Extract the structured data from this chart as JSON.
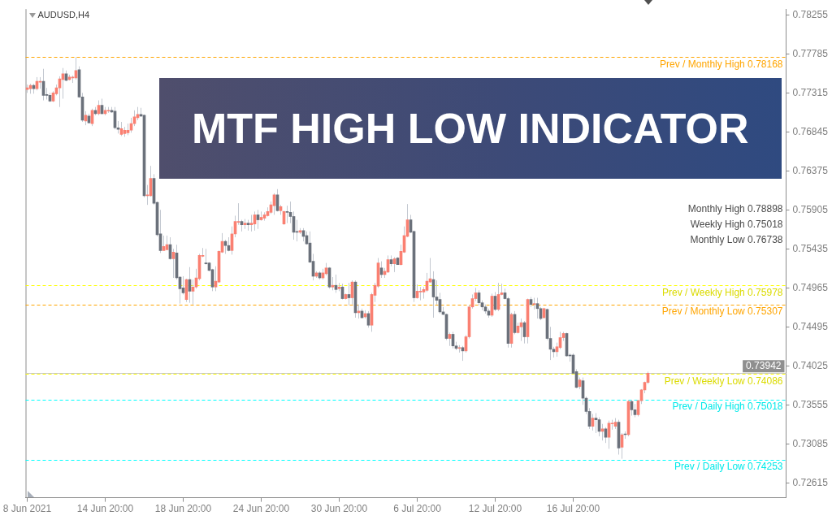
{
  "chart_data": {
    "type": "candlestick",
    "title": "MTF HIGH LOW INDICATOR",
    "subtitle": "AUDUSD,H4",
    "categories": [
      "8 Jun 2021",
      null,
      null,
      null,
      null,
      null,
      null,
      null,
      null,
      null,
      null,
      null,
      null,
      null,
      null,
      null,
      null,
      null,
      null,
      null,
      null,
      null,
      null,
      null,
      "14 Jun 20:00",
      null,
      null,
      null,
      null,
      null,
      null,
      null,
      null,
      null,
      null,
      null,
      null,
      null,
      null,
      null,
      null,
      null,
      null,
      null,
      null,
      null,
      null,
      null,
      "18 Jun 20:00",
      null,
      null,
      null,
      null,
      null,
      null,
      null,
      null,
      null,
      null,
      null,
      null,
      null,
      null,
      null,
      null,
      null,
      null,
      null,
      null,
      null,
      null,
      null,
      "24 Jun 20:00",
      null,
      null,
      null,
      null,
      null,
      null,
      null,
      null,
      null,
      null,
      null,
      null,
      null,
      null,
      null,
      null,
      null,
      null,
      null,
      null,
      null,
      null,
      null,
      "30 Jun 20:00",
      null,
      null,
      null,
      null,
      null,
      null,
      null,
      null,
      null,
      null,
      null,
      null,
      null,
      null,
      null,
      null,
      null,
      null,
      null,
      null,
      null,
      null,
      null,
      "6 Jul 20:00",
      null,
      null,
      null,
      null,
      null,
      null,
      null,
      null,
      null,
      null,
      null,
      null,
      null,
      null,
      null,
      null,
      null,
      null,
      null,
      null,
      null,
      null,
      null,
      "12 Jul 20:00",
      null,
      null,
      null,
      null,
      null,
      null,
      null,
      null,
      null,
      null,
      null,
      null,
      null,
      null,
      null,
      null,
      null,
      null,
      null,
      null,
      null,
      null,
      null,
      "16 Jul 20:00",
      null,
      null,
      null,
      null,
      null,
      null,
      null,
      null,
      null,
      null,
      null,
      null,
      null,
      null,
      null,
      null,
      null,
      null,
      null,
      null,
      null,
      null,
      null,
      null,
      null,
      null,
      null,
      null,
      null,
      null,
      null,
      null,
      null,
      null,
      null,
      null,
      null,
      null,
      null,
      null,
      null,
      null,
      null,
      null,
      null,
      null,
      null,
      null,
      null,
      null,
      null,
      null,
      null,
      null,
      null,
      null,
      null,
      null,
      null,
      null,
      null,
      null,
      null,
      null,
      null
    ],
    "ohlc": [
      [
        0.7736,
        0.7742,
        0.7732,
        0.7738
      ],
      [
        0.7737,
        0.7743,
        0.7731,
        0.7741
      ],
      [
        0.7741,
        0.7743,
        0.7731,
        0.7737
      ],
      [
        0.7737,
        0.7751,
        0.7735,
        0.7746
      ],
      [
        0.7745,
        0.7751,
        0.7737,
        0.7746
      ],
      [
        0.7746,
        0.7761,
        0.7723,
        0.7729
      ],
      [
        0.773,
        0.7738,
        0.7724,
        0.7729
      ],
      [
        0.7729,
        0.7732,
        0.7721,
        0.7722
      ],
      [
        0.7722,
        0.7734,
        0.7721,
        0.7732
      ],
      [
        0.7731,
        0.7742,
        0.7729,
        0.7738
      ],
      [
        0.7738,
        0.7752,
        0.7715,
        0.7749
      ],
      [
        0.7748,
        0.7762,
        0.7725,
        0.7755
      ],
      [
        0.7755,
        0.7759,
        0.7746,
        0.7747
      ],
      [
        0.7748,
        0.7754,
        0.7747,
        0.7751
      ],
      [
        0.775,
        0.7753,
        0.7744,
        0.7751
      ],
      [
        0.775,
        0.7775,
        0.7748,
        0.7759
      ],
      [
        0.776,
        0.7764,
        0.7726,
        0.7727
      ],
      [
        0.7727,
        0.7732,
        0.7697,
        0.7699
      ],
      [
        0.7698,
        0.771,
        0.7693,
        0.7705
      ],
      [
        0.7704,
        0.7707,
        0.7695,
        0.7696
      ],
      [
        0.7695,
        0.7713,
        0.7692,
        0.7711
      ],
      [
        0.7711,
        0.7715,
        0.7705,
        0.7707
      ],
      [
        0.7707,
        0.7723,
        0.7705,
        0.7717
      ],
      [
        0.7717,
        0.7725,
        0.7706,
        0.7707
      ],
      [
        0.7707,
        0.7715,
        0.7705,
        0.7711
      ],
      [
        0.771,
        0.7715,
        0.7708,
        0.7711
      ],
      [
        0.7711,
        0.7715,
        0.7708,
        0.7709
      ],
      [
        0.771,
        0.7715,
        0.7688,
        0.769
      ],
      [
        0.769,
        0.7698,
        0.7683,
        0.7688
      ],
      [
        0.7682,
        0.7697,
        0.768,
        0.7689
      ],
      [
        0.7683,
        0.7691,
        0.7679,
        0.7687
      ],
      [
        0.7684,
        0.7695,
        0.7681,
        0.7687
      ],
      [
        0.7687,
        0.7702,
        0.7684,
        0.7695
      ],
      [
        0.7695,
        0.7711,
        0.7692,
        0.7703
      ],
      [
        0.7702,
        0.7715,
        0.7699,
        0.7706
      ],
      [
        0.7706,
        0.7714,
        0.7703,
        0.7704
      ],
      [
        0.7705,
        0.7706,
        0.7606,
        0.7608
      ],
      [
        0.7608,
        0.7621,
        0.7597,
        0.7609
      ],
      [
        0.7608,
        0.7644,
        0.7607,
        0.7629
      ],
      [
        0.7629,
        0.7634,
        0.7597,
        0.7599
      ],
      [
        0.76,
        0.7601,
        0.7559,
        0.7561
      ],
      [
        0.7562,
        0.7591,
        0.7539,
        0.7542
      ],
      [
        0.7542,
        0.756,
        0.7542,
        0.7547
      ],
      [
        0.7543,
        0.756,
        0.7543,
        0.7549
      ],
      [
        0.7549,
        0.7558,
        0.7531,
        0.7532
      ],
      [
        0.7532,
        0.7544,
        0.7509,
        0.754
      ],
      [
        0.7539,
        0.7549,
        0.7507,
        0.7509
      ],
      [
        0.751,
        0.7511,
        0.7478,
        0.7496
      ],
      [
        0.7497,
        0.7511,
        0.7489,
        0.7491
      ],
      [
        0.7483,
        0.7508,
        0.748,
        0.7507
      ],
      [
        0.7507,
        0.7522,
        0.7479,
        0.7493
      ],
      [
        0.7493,
        0.7507,
        0.7477,
        0.7498
      ],
      [
        0.7498,
        0.752,
        0.7496,
        0.7509
      ],
      [
        0.7508,
        0.7538,
        0.7506,
        0.7536
      ],
      [
        0.7535,
        0.7545,
        0.7534,
        0.7536
      ],
      [
        0.7527,
        0.7544,
        0.7525,
        0.7526
      ],
      [
        0.7527,
        0.7528,
        0.7517,
        0.7518
      ],
      [
        0.7519,
        0.752,
        0.7493,
        0.7498
      ],
      [
        0.7498,
        0.7523,
        0.7493,
        0.7505
      ],
      [
        0.7504,
        0.7542,
        0.7503,
        0.7541
      ],
      [
        0.754,
        0.7563,
        0.7539,
        0.7553
      ],
      [
        0.7553,
        0.7555,
        0.7538,
        0.7548
      ],
      [
        0.7548,
        0.7558,
        0.7541,
        0.7542
      ],
      [
        0.7542,
        0.7571,
        0.7537,
        0.7562
      ],
      [
        0.7562,
        0.7584,
        0.7558,
        0.7577
      ],
      [
        0.7576,
        0.7599,
        0.7573,
        0.7577
      ],
      [
        0.7577,
        0.7579,
        0.7565,
        0.7573
      ],
      [
        0.7573,
        0.758,
        0.7568,
        0.7575
      ],
      [
        0.7575,
        0.7579,
        0.7566,
        0.7573
      ],
      [
        0.7573,
        0.7585,
        0.7565,
        0.7575
      ],
      [
        0.7574,
        0.7589,
        0.7566,
        0.7585
      ],
      [
        0.7585,
        0.7591,
        0.7568,
        0.7579
      ],
      [
        0.7579,
        0.7589,
        0.7578,
        0.7582
      ],
      [
        0.7581,
        0.7588,
        0.7578,
        0.7585
      ],
      [
        0.7584,
        0.7594,
        0.7583,
        0.7589
      ],
      [
        0.7588,
        0.7601,
        0.7586,
        0.7597
      ],
      [
        0.7596,
        0.7611,
        0.7585,
        0.7609
      ],
      [
        0.7609,
        0.7616,
        0.7589,
        0.759
      ],
      [
        0.759,
        0.7597,
        0.7585,
        0.7595
      ],
      [
        0.7574,
        0.759,
        0.7573,
        0.7589
      ],
      [
        0.7589,
        0.7596,
        0.7575,
        0.7588
      ],
      [
        0.7588,
        0.7601,
        0.7575,
        0.7583
      ],
      [
        0.7583,
        0.7589,
        0.7555,
        0.7564
      ],
      [
        0.7564,
        0.7579,
        0.7553,
        0.7564
      ],
      [
        0.7564,
        0.7569,
        0.7562,
        0.7566
      ],
      [
        0.7566,
        0.7569,
        0.7553,
        0.7559
      ],
      [
        0.756,
        0.7565,
        0.7549,
        0.755
      ],
      [
        0.7551,
        0.7565,
        0.7527,
        0.7528
      ],
      [
        0.7529,
        0.7538,
        0.7506,
        0.7511
      ],
      [
        0.7511,
        0.7517,
        0.7509,
        0.7515
      ],
      [
        0.7515,
        0.7517,
        0.7507,
        0.7509
      ],
      [
        0.7509,
        0.752,
        0.7507,
        0.7515
      ],
      [
        0.7514,
        0.7527,
        0.7512,
        0.7521
      ],
      [
        0.7521,
        0.7522,
        0.7496,
        0.7498
      ],
      [
        0.7498,
        0.751,
        0.7494,
        0.75
      ],
      [
        0.75,
        0.7513,
        0.7491,
        0.7495
      ],
      [
        0.7496,
        0.7503,
        0.7493,
        0.7498
      ],
      [
        0.7498,
        0.7502,
        0.7483,
        0.7484
      ],
      [
        0.7484,
        0.749,
        0.7483,
        0.7489
      ],
      [
        0.7489,
        0.7503,
        0.7476,
        0.7485
      ],
      [
        0.7485,
        0.7506,
        0.7477,
        0.7504
      ],
      [
        0.7504,
        0.7506,
        0.7461,
        0.7467
      ],
      [
        0.7467,
        0.7477,
        0.746,
        0.7469
      ],
      [
        0.7469,
        0.7472,
        0.746,
        0.7461
      ],
      [
        0.7462,
        0.747,
        0.746,
        0.7466
      ],
      [
        0.7466,
        0.7469,
        0.7449,
        0.7452
      ],
      [
        0.7452,
        0.7491,
        0.7444,
        0.7489
      ],
      [
        0.7488,
        0.7503,
        0.748,
        0.75
      ],
      [
        0.7499,
        0.7533,
        0.7497,
        0.7527
      ],
      [
        0.7521,
        0.7529,
        0.7509,
        0.7513
      ],
      [
        0.7513,
        0.7521,
        0.7509,
        0.7517
      ],
      [
        0.7516,
        0.7536,
        0.7515,
        0.7531
      ],
      [
        0.7531,
        0.7536,
        0.7523,
        0.7526
      ],
      [
        0.7526,
        0.7534,
        0.7516,
        0.7532
      ],
      [
        0.7533,
        0.7534,
        0.7525,
        0.7525
      ],
      [
        0.7525,
        0.7549,
        0.7524,
        0.7541
      ],
      [
        0.754,
        0.7571,
        0.7539,
        0.756
      ],
      [
        0.7559,
        0.7598,
        0.7558,
        0.7579
      ],
      [
        0.7579,
        0.7585,
        0.7563,
        0.7564
      ],
      [
        0.7565,
        0.7566,
        0.748,
        0.7485
      ],
      [
        0.7485,
        0.7501,
        0.7484,
        0.7493
      ],
      [
        0.7492,
        0.7498,
        0.7482,
        0.7493
      ],
      [
        0.7492,
        0.7498,
        0.7484,
        0.7495
      ],
      [
        0.7494,
        0.7515,
        0.7492,
        0.7505
      ],
      [
        0.7504,
        0.7533,
        0.7503,
        0.7508
      ],
      [
        0.7507,
        0.7517,
        0.7461,
        0.7486
      ],
      [
        0.7486,
        0.7506,
        0.7477,
        0.7482
      ],
      [
        0.7483,
        0.7491,
        0.7466,
        0.7468
      ],
      [
        0.7468,
        0.7474,
        0.7464,
        0.7465
      ],
      [
        0.7465,
        0.7466,
        0.7434,
        0.7436
      ],
      [
        0.7436,
        0.7443,
        0.7427,
        0.7441
      ],
      [
        0.7441,
        0.7444,
        0.7424,
        0.7427
      ],
      [
        0.7427,
        0.7432,
        0.7422,
        0.7424
      ],
      [
        0.7424,
        0.7428,
        0.7419,
        0.7425
      ],
      [
        0.7425,
        0.7427,
        0.7409,
        0.7421
      ],
      [
        0.7421,
        0.744,
        0.7419,
        0.7438
      ],
      [
        0.7438,
        0.7476,
        0.7436,
        0.7474
      ],
      [
        0.7474,
        0.7489,
        0.7472,
        0.7484
      ],
      [
        0.7484,
        0.7497,
        0.7481,
        0.7491
      ],
      [
        0.7491,
        0.7494,
        0.7476,
        0.7479
      ],
      [
        0.7479,
        0.7482,
        0.747,
        0.7474
      ],
      [
        0.7474,
        0.7477,
        0.7466,
        0.7469
      ],
      [
        0.7469,
        0.7472,
        0.7461,
        0.7464
      ],
      [
        0.7464,
        0.749,
        0.7462,
        0.7487
      ],
      [
        0.7487,
        0.7492,
        0.7469,
        0.7471
      ],
      [
        0.7471,
        0.7503,
        0.7469,
        0.7489
      ],
      [
        0.7489,
        0.7502,
        0.7488,
        0.7491
      ],
      [
        0.7491,
        0.7496,
        0.7483,
        0.7484
      ],
      [
        0.7484,
        0.7486,
        0.7425,
        0.743
      ],
      [
        0.743,
        0.7467,
        0.7425,
        0.7465
      ],
      [
        0.7465,
        0.7469,
        0.7441,
        0.7443
      ],
      [
        0.7443,
        0.7455,
        0.7442,
        0.7451
      ],
      [
        0.745,
        0.746,
        0.7433,
        0.7455
      ],
      [
        0.7455,
        0.7457,
        0.743,
        0.7438
      ],
      [
        0.7438,
        0.7484,
        0.743,
        0.7483
      ],
      [
        0.7483,
        0.7486,
        0.7474,
        0.7477
      ],
      [
        0.7477,
        0.7485,
        0.7471,
        0.7478
      ],
      [
        0.7478,
        0.7485,
        0.746,
        0.7472
      ],
      [
        0.7472,
        0.7474,
        0.7458,
        0.746
      ],
      [
        0.7461,
        0.7473,
        0.746,
        0.7472
      ],
      [
        0.7471,
        0.7472,
        0.7434,
        0.7436
      ],
      [
        0.7436,
        0.745,
        0.741,
        0.7423
      ],
      [
        0.7423,
        0.7426,
        0.7413,
        0.742
      ],
      [
        0.742,
        0.7431,
        0.7414,
        0.7426
      ],
      [
        0.7425,
        0.7444,
        0.7423,
        0.7437
      ],
      [
        0.7437,
        0.7444,
        0.7433,
        0.7442
      ],
      [
        0.7442,
        0.7443,
        0.7414,
        0.7415
      ],
      [
        0.7415,
        0.7418,
        0.7408,
        0.7415
      ],
      [
        0.7416,
        0.7418,
        0.7393,
        0.7394
      ],
      [
        0.7396,
        0.7399,
        0.7376,
        0.7377
      ],
      [
        0.7378,
        0.7389,
        0.7375,
        0.7386
      ],
      [
        0.7385,
        0.7389,
        0.7356,
        0.7364
      ],
      [
        0.7364,
        0.7366,
        0.7345,
        0.7348
      ],
      [
        0.7348,
        0.7352,
        0.7327,
        0.733
      ],
      [
        0.733,
        0.7345,
        0.7325,
        0.734
      ],
      [
        0.734,
        0.7346,
        0.7322,
        0.7338
      ],
      [
        0.7338,
        0.7341,
        0.7318,
        0.7324
      ],
      [
        0.7324,
        0.7333,
        0.7313,
        0.7327
      ],
      [
        0.7327,
        0.7329,
        0.731,
        0.7317
      ],
      [
        0.7317,
        0.7337,
        0.7303,
        0.7334
      ],
      [
        0.7333,
        0.7338,
        0.7326,
        0.7334
      ],
      [
        0.733,
        0.734,
        0.7327,
        0.7335
      ],
      [
        0.7335,
        0.7338,
        0.7296,
        0.7304
      ],
      [
        0.7305,
        0.7322,
        0.7291,
        0.732
      ],
      [
        0.732,
        0.7324,
        0.7315,
        0.732
      ],
      [
        0.732,
        0.7362,
        0.7318,
        0.736
      ],
      [
        0.736,
        0.7362,
        0.7343,
        0.735
      ],
      [
        0.735,
        0.7357,
        0.7341,
        0.7344
      ],
      [
        0.7344,
        0.7362,
        0.7342,
        0.7361
      ],
      [
        0.7361,
        0.7375,
        0.7357,
        0.7374
      ],
      [
        0.7374,
        0.7384,
        0.737,
        0.7383
      ],
      [
        0.7383,
        0.7396,
        0.7381,
        0.7394
      ],
      null,
      null,
      null,
      null,
      null,
      null,
      null,
      null,
      null,
      null,
      null,
      null,
      null,
      null,
      null,
      null,
      null,
      null,
      null,
      null,
      null,
      null,
      null,
      null,
      null,
      null,
      null,
      null,
      null,
      null,
      null,
      null,
      null,
      null,
      null,
      null,
      null,
      null,
      null,
      null,
      null,
      null
    ],
    "colors": [
      "#fa8072",
      "#fa8072",
      "#6b717b",
      "#fa8072",
      "#fa8072",
      "#6b717b",
      "#6b717b",
      "#6b717b",
      "#fa8072",
      "#fa8072",
      "#fa8072",
      "#fa8072",
      "#6b717b",
      "#fa8072",
      "#fa8072",
      "#fa8072",
      "#6b717b",
      "#6b717b",
      "#fa8072",
      "#6b717b",
      "#fa8072",
      "#6b717b",
      "#fa8072",
      "#6b717b",
      "#fa8072",
      "#fa8072",
      "#6b717b",
      "#6b717b",
      "#6b717b",
      "#fa8072",
      "#fa8072",
      "#fa8072",
      "#fa8072",
      "#fa8072",
      "#fa8072",
      "#6b717b",
      "#6b717b",
      "#fa8072",
      "#fa8072",
      "#6b717b",
      "#6b717b",
      "#6b717b",
      "#fa8072",
      "#fa8072",
      "#6b717b",
      "#fa8072",
      "#6b717b",
      "#6b717b",
      "#6b717b",
      "#fa8072",
      "#6b717b",
      "#fa8072",
      "#fa8072",
      "#fa8072",
      "#fa8072",
      "#6b717b",
      "#6b717b",
      "#6b717b",
      "#fa8072",
      "#fa8072",
      "#fa8072",
      "#6b717b",
      "#6b717b",
      "#fa8072",
      "#fa8072",
      "#fa8072",
      "#6b717b",
      "#fa8072",
      "#6b717b",
      "#fa8072",
      "#fa8072",
      "#6b717b",
      "#fa8072",
      "#fa8072",
      "#fa8072",
      "#fa8072",
      "#fa8072",
      "#6b717b",
      "#fa8072",
      "#fa8072",
      "#6b717b",
      "#6b717b",
      "#6b717b",
      "#6b717b",
      "#fa8072",
      "#6b717b",
      "#6b717b",
      "#6b717b",
      "#6b717b",
      "#fa8072",
      "#6b717b",
      "#fa8072",
      "#fa8072",
      "#6b717b",
      "#fa8072",
      "#6b717b",
      "#fa8072",
      "#6b717b",
      "#fa8072",
      "#6b717b",
      "#fa8072",
      "#6b717b",
      "#fa8072",
      "#6b717b",
      "#fa8072",
      "#6b717b",
      "#fa8072",
      "#fa8072",
      "#fa8072",
      "#6b717b",
      "#fa8072",
      "#fa8072",
      "#6b717b",
      "#fa8072",
      "#6b717b",
      "#fa8072",
      "#fa8072",
      "#fa8072",
      "#6b717b",
      "#6b717b",
      "#fa8072",
      "#fa8072",
      "#fa8072",
      "#fa8072",
      "#fa8072",
      "#6b717b",
      "#6b717b",
      "#6b717b",
      "#6b717b",
      "#6b717b",
      "#fa8072",
      "#6b717b",
      "#6b717b",
      "#fa8072",
      "#6b717b",
      "#fa8072",
      "#fa8072",
      "#fa8072",
      "#fa8072",
      "#6b717b",
      "#6b717b",
      "#6b717b",
      "#6b717b",
      "#fa8072",
      "#6b717b",
      "#fa8072",
      "#fa8072",
      "#6b717b",
      "#6b717b",
      "#fa8072",
      "#6b717b",
      "#fa8072",
      "#fa8072",
      "#6b717b",
      "#fa8072",
      "#6b717b",
      "#fa8072",
      "#6b717b",
      "#6b717b",
      "#fa8072",
      "#6b717b",
      "#6b717b",
      "#6b717b",
      "#fa8072",
      "#fa8072",
      "#fa8072",
      "#6b717b",
      "#6b717b",
      "#6b717b",
      "#6b717b",
      "#fa8072",
      "#6b717b",
      "#6b717b",
      "#6b717b",
      "#fa8072",
      "#6b717b",
      "#6b717b",
      "#fa8072",
      "#6b717b",
      "#fa8072",
      "#fa8072",
      "#fa8072",
      "#6b717b",
      "#fa8072",
      "#6b717b",
      "#fa8072",
      "#6b717b",
      "#6b717b",
      "#fa8072",
      "#fa8072",
      "#fa8072",
      "#fa8072",
      null,
      null,
      null,
      null,
      null,
      null,
      null,
      null,
      null,
      null,
      null,
      null,
      null,
      null,
      null,
      null,
      null,
      null,
      null,
      null,
      null,
      null,
      null,
      null,
      null,
      null,
      null,
      null,
      null,
      null,
      null,
      null,
      null,
      null,
      null,
      null,
      null,
      null,
      null,
      null,
      null,
      null
    ],
    "ylim": [
      0.7244,
      0.7833
    ],
    "yticks": [
      {
        "value": 0.78255,
        "label": "0.78255"
      },
      {
        "value": 0.77785,
        "label": "0.77785"
      },
      {
        "value": 0.77315,
        "label": "0.77315"
      },
      {
        "value": 0.76845,
        "label": "0.76845"
      },
      {
        "value": 0.76375,
        "label": "0.76375"
      },
      {
        "value": 0.75905,
        "label": "0.75905"
      },
      {
        "value": 0.75435,
        "label": "0.75435"
      },
      {
        "value": 0.74965,
        "label": "0.74965"
      },
      {
        "value": 0.74495,
        "label": "0.74495"
      },
      {
        "value": 0.74025,
        "label": "0.74025"
      },
      {
        "value": 0.73555,
        "label": "0.73555"
      },
      {
        "value": 0.73085,
        "label": "0.73085"
      },
      {
        "value": 0.72615,
        "label": "0.72615"
      }
    ],
    "ref_lines": [
      {
        "axis": "y",
        "value": 0.7775,
        "label": "Prev / Monthly High 0.78168",
        "color": "#ffa500",
        "line_style": "dashed"
      },
      {
        "axis": "y",
        "value": 0.75,
        "label": "Prev / Weekly High 0.75978",
        "color": "#ffff00",
        "line_style": "dashed"
      },
      {
        "axis": "y",
        "value": 0.7477,
        "label": "Prev / Monthly Low 0.75307",
        "color": "#ffa500",
        "line_style": "dashed"
      },
      {
        "axis": "y",
        "value": 0.7393,
        "label": "Prev / Weekly Low 0.74086",
        "color": "#ffff00",
        "line_style": "dashed"
      },
      {
        "axis": "y",
        "value": 0.7362,
        "label": "Prev / Daily High 0.75018",
        "color": "#00ffff",
        "line_style": "dashed"
      },
      {
        "axis": "y",
        "value": 0.729,
        "label": "Prev / Daily Low 0.74253",
        "color": "#00ffff",
        "line_style": "dashed"
      },
      {
        "axis": "y",
        "value": 0.73942,
        "color": "#c8c8c8",
        "line_style": "solid"
      }
    ],
    "annotations": [
      "Monthly High 0.78898",
      "Weekly High 0.75018",
      "Monthly Low 0.76738",
      {
        "text": "0.73942",
        "y": 0.73942
      }
    ]
  }
}
